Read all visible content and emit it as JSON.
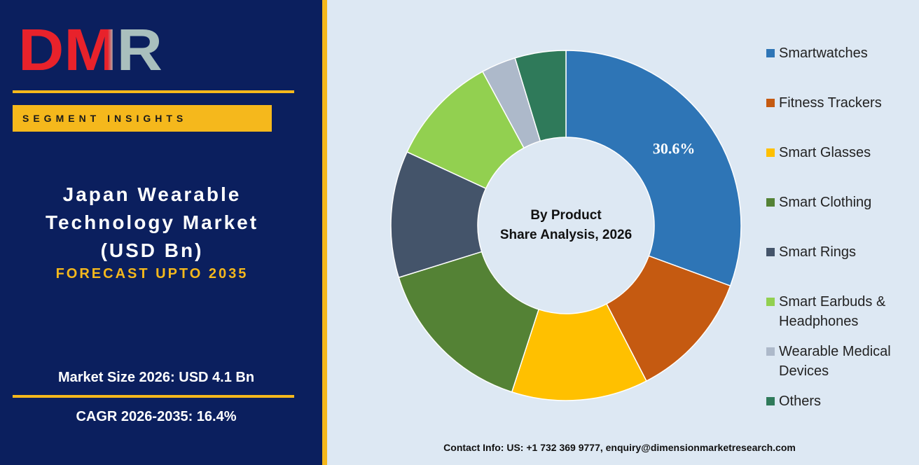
{
  "logo": "DMR",
  "badge": "SEGMENT INSIGHTS",
  "market_size": "Market Size 2026: USD 4.1 Bn",
  "cagr": "CAGR 2026-2035: 16.4%",
  "contact": "Contact Info: US: +1 732 369 9777, enquiry@dimensionmarketresearch.com",
  "chart_data": {
    "type": "donut",
    "title": "Japan Wearable Technology Market (USD Bn)",
    "subtitle": "FORECAST UPTO 2035",
    "center_label": [
      "By Product",
      "Share Analysis, 2026"
    ],
    "categories": [
      "Smartwatches",
      "Fitness Trackers",
      "Smart Glasses",
      "Smart Clothing",
      "Smart Rings",
      "Smart Earbuds & Headphones",
      "Wearable Medical Devices",
      "Others"
    ],
    "values": [
      30.6,
      11.8,
      12.6,
      15.2,
      11.7,
      10.2,
      3.2,
      4.7
    ],
    "value_labels": [
      "30.6%",
      null,
      null,
      null,
      null,
      null,
      null,
      null
    ],
    "colors": [
      "#2e75b6",
      "#c55a11",
      "#ffc000",
      "#548235",
      "#44546a",
      "#92d050",
      "#adb9ca",
      "#2f7a5a"
    ]
  }
}
